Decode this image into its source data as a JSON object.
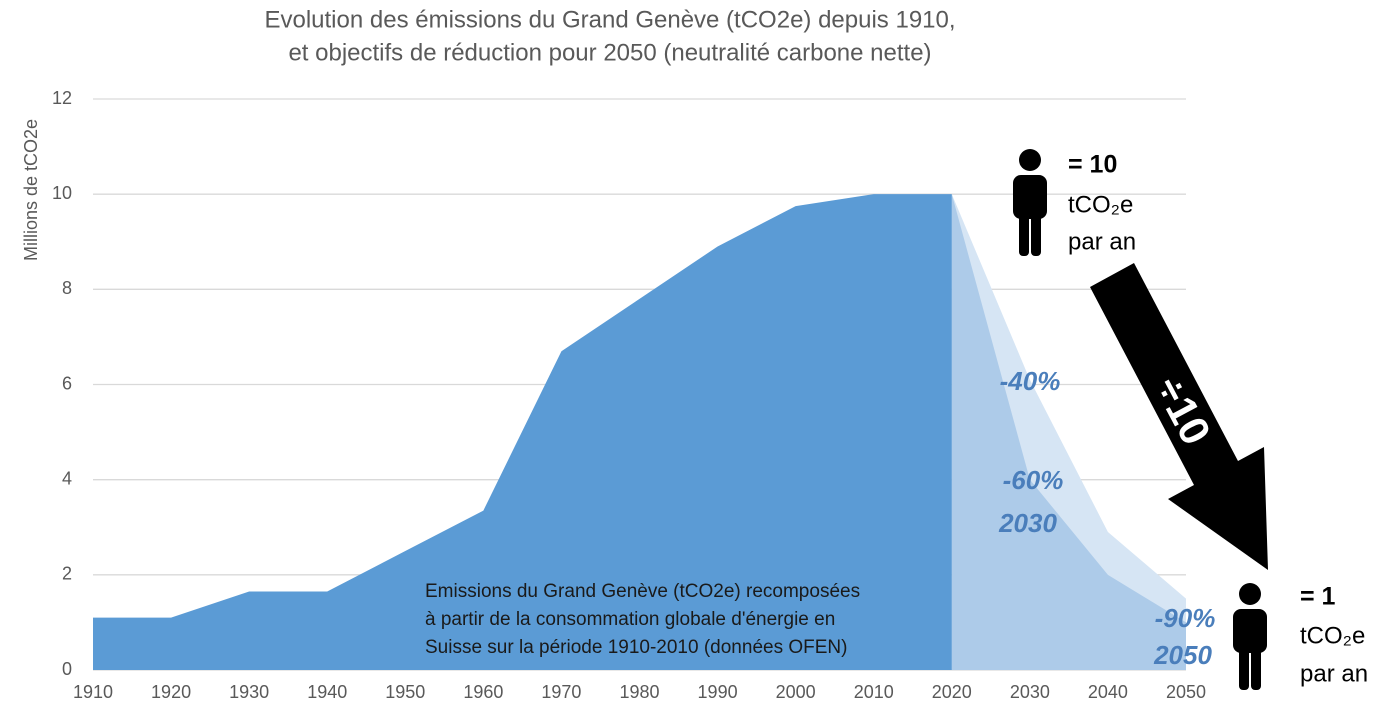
{
  "chart_data": {
    "type": "area",
    "title": [
      "Evolution des émissions du Grand Genève (tCO2e) depuis 1910,",
      "et objectifs de réduction pour 2050 (neutralité carbone nette)"
    ],
    "y_label": "Millions de tCO2e",
    "x": [
      1910,
      1920,
      1930,
      1940,
      1950,
      1960,
      1970,
      1980,
      1990,
      2000,
      2010,
      2020,
      2030,
      2040,
      2050
    ],
    "xlim": [
      1910,
      2050
    ],
    "xticks": [
      1910,
      1920,
      1930,
      1940,
      1950,
      1960,
      1970,
      1980,
      1990,
      2000,
      2010,
      2020,
      2030,
      2040,
      2050
    ],
    "ylim": [
      0,
      12
    ],
    "yticks": [
      0,
      2,
      4,
      6,
      8,
      10,
      12
    ],
    "grid": true,
    "series": [
      {
        "color": "#d6e5f4",
        "values": [
          null,
          null,
          null,
          null,
          null,
          null,
          null,
          null,
          null,
          null,
          null,
          10,
          6.1,
          2.9,
          1.5
        ]
      },
      {
        "color": "#adcbe9",
        "values": [
          null,
          null,
          null,
          null,
          null,
          null,
          null,
          null,
          null,
          null,
          null,
          10,
          4,
          2,
          1
        ]
      },
      {
        "color": "#5b9bd5",
        "values": [
          1.1,
          1.1,
          1.65,
          1.65,
          2.5,
          3.35,
          6.7,
          7.8,
          8.9,
          9.75,
          10,
          10,
          null,
          null,
          null
        ]
      }
    ],
    "annotations": [
      "-40%",
      "-60%",
      "2030",
      "-90%",
      "2050",
      "Emissions du Grand Genève (tCO2e) recomposées",
      "à partir de la consommation globale d'énergie en",
      "Suisse sur la période 1910-2010 (données OFEN)",
      "= 10",
      "tCO₂e",
      "par an",
      "÷10",
      "= 1",
      "tCO₂e",
      "par an"
    ]
  }
}
